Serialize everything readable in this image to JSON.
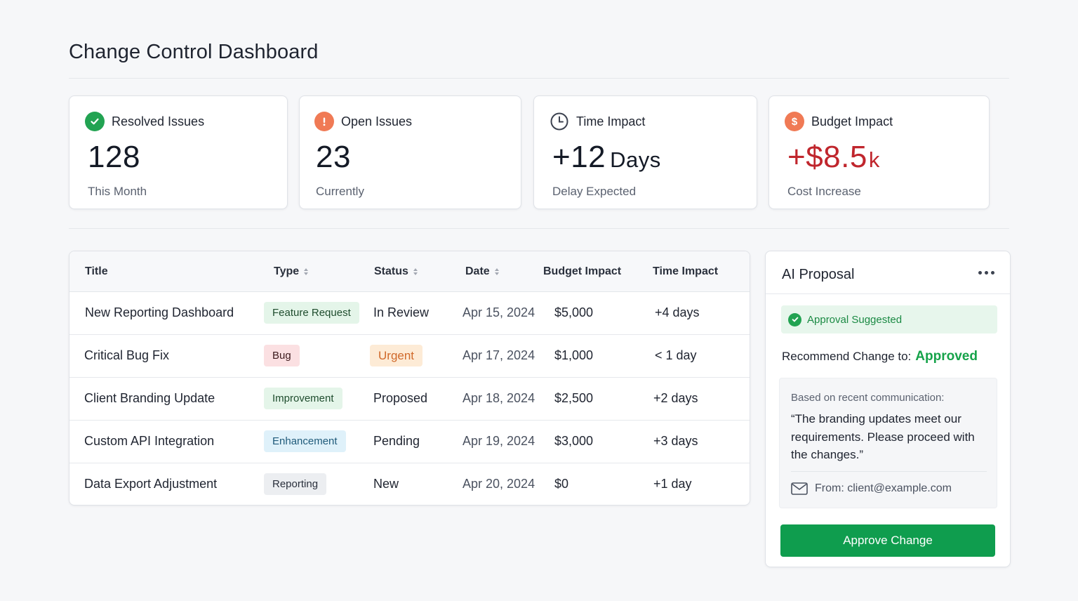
{
  "page": {
    "title": "Change Control Dashboard"
  },
  "colors": {
    "accent_green": "#16a34a",
    "button_green": "#0f9d4e",
    "open_orange": "#f07a55",
    "budget_red": "#c0262d"
  },
  "stats": [
    {
      "icon": "check-circle-icon",
      "label": "Resolved Issues",
      "value": "128",
      "unit": "",
      "sub": "This Month"
    },
    {
      "icon": "alert-circle-icon",
      "label": "Open Issues",
      "value": "23",
      "unit": "",
      "sub": "Currently"
    },
    {
      "icon": "clock-icon",
      "label": "Time Impact",
      "value": "+12",
      "unit": "Days",
      "sub": "Delay Expected"
    },
    {
      "icon": "dollar-circle-icon",
      "label": "Budget Impact",
      "value": "+$8.5",
      "unit": "k",
      "sub": "Cost Increase"
    }
  ],
  "table": {
    "headers": {
      "title": "Title",
      "type": "Type",
      "status": "Status",
      "date": "Date",
      "budget": "Budget Impact",
      "time": "Time Impact"
    },
    "rows": [
      {
        "title": "New Reporting Dashboard",
        "type": "Feature Request",
        "status": "In Review",
        "date": "Apr 15, 2024",
        "budget": "$5,000",
        "time": "+4 days"
      },
      {
        "title": "Critical Bug Fix",
        "type": "Bug",
        "status": "Urgent",
        "date": "Apr 17, 2024",
        "budget": "$1,000",
        "time": "< 1 day"
      },
      {
        "title": "Client Branding Update",
        "type": "Improvement",
        "status": "Proposed",
        "date": "Apr 18, 2024",
        "budget": "$2,500",
        "time": "+2 days"
      },
      {
        "title": "Custom API Integration",
        "type": "Enhancement",
        "status": "Pending",
        "date": "Apr 19, 2024",
        "budget": "$3,000",
        "time": "+3 days"
      },
      {
        "title": "Data Export Adjustment",
        "type": "Reporting",
        "status": "New",
        "date": "Apr 20, 2024",
        "budget": "$0",
        "time": "+1 day"
      }
    ]
  },
  "ai_panel": {
    "title": "AI Proposal",
    "more_icon": "more-horizontal-icon",
    "suggestion": "Approval Suggested",
    "recommend_label": "Recommend Change to:",
    "recommend_value": "Approved",
    "comm_intro": "Based on recent communication:",
    "comm_quote": "“The branding updates meet our requirements. Please proceed with the changes.”",
    "from_label": "From: client@example.com",
    "button_label": "Approve Change"
  }
}
